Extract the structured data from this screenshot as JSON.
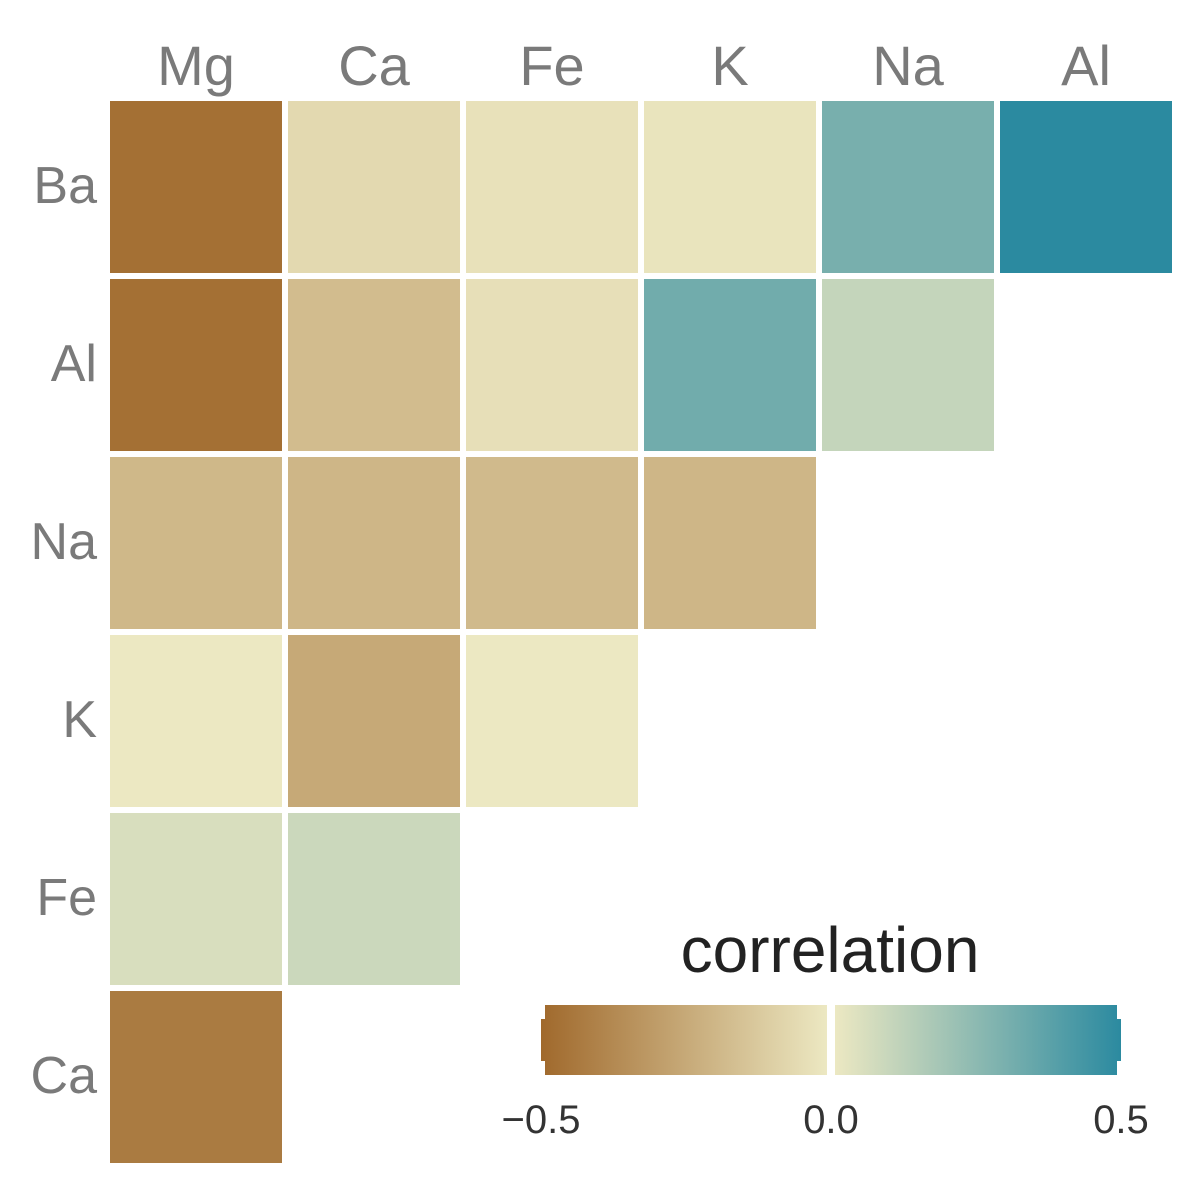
{
  "chart_data": {
    "type": "heatmap",
    "columns": [
      "Mg",
      "Ca",
      "Fe",
      "K",
      "Na",
      "Al"
    ],
    "rows": [
      "Ba",
      "Al",
      "Na",
      "K",
      "Fe",
      "Ca"
    ],
    "values": [
      [
        -0.55,
        -0.07,
        -0.03,
        -0.02,
        0.35,
        0.58
      ],
      [
        -0.55,
        -0.2,
        -0.04,
        0.37,
        0.12,
        null
      ],
      [
        -0.22,
        -0.23,
        -0.21,
        -0.23,
        null,
        null
      ],
      [
        0.0,
        -0.29,
        0.0,
        null,
        null,
        null
      ],
      [
        0.06,
        0.1,
        null,
        null,
        null,
        null
      ],
      [
        -0.5,
        null,
        null,
        null,
        null,
        null
      ]
    ],
    "legend": {
      "title": "correlation",
      "ticks": [
        -0.5,
        0.0,
        0.5
      ],
      "tick_labels": [
        "−0.5",
        "0.0",
        "0.5"
      ],
      "range": [
        -0.58,
        0.58
      ]
    },
    "colors": {
      "negative": "#a0692c",
      "neutral": "#ece8c2",
      "positive": "#2b8aa0"
    }
  }
}
